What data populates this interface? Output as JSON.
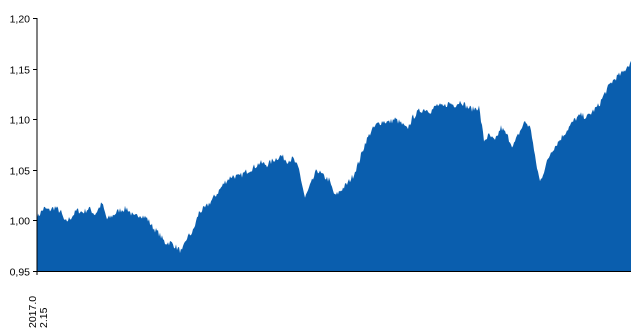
{
  "chart_data": {
    "type": "area",
    "title": "",
    "xlabel": "",
    "ylabel": "",
    "ylim": [
      0.95,
      1.2
    ],
    "yticks": [
      0.95,
      1.0,
      1.05,
      1.1,
      1.15,
      1.2
    ],
    "ytick_labels": [
      "0,95",
      "1,00",
      "1,05",
      "1,10",
      "1,15",
      "1,20"
    ],
    "xtick_labels": [
      "2017.02.15"
    ],
    "xtick_label_lines": [
      "2017.0",
      "2.15"
    ],
    "grid": false,
    "legend": "none",
    "fill_color": "#0a5eae",
    "x_first_label": "2017.02.15",
    "x_count": 595,
    "anchors": [
      {
        "x": 0,
        "y": 1.003
      },
      {
        "x": 7,
        "y": 1.012
      },
      {
        "x": 12,
        "y": 1.01
      },
      {
        "x": 18,
        "y": 1.013
      },
      {
        "x": 24,
        "y": 1.008
      },
      {
        "x": 28,
        "y": 0.998
      },
      {
        "x": 34,
        "y": 1.003
      },
      {
        "x": 40,
        "y": 1.01
      },
      {
        "x": 46,
        "y": 1.008
      },
      {
        "x": 52,
        "y": 1.012
      },
      {
        "x": 58,
        "y": 1.006
      },
      {
        "x": 65,
        "y": 1.017
      },
      {
        "x": 70,
        "y": 1.001
      },
      {
        "x": 76,
        "y": 1.005
      },
      {
        "x": 82,
        "y": 1.01
      },
      {
        "x": 90,
        "y": 1.012
      },
      {
        "x": 97,
        "y": 1.003
      },
      {
        "x": 103,
        "y": 1.006
      },
      {
        "x": 110,
        "y": 1.002
      },
      {
        "x": 116,
        "y": 0.993
      },
      {
        "x": 122,
        "y": 0.987
      },
      {
        "x": 128,
        "y": 0.978
      },
      {
        "x": 134,
        "y": 0.978
      },
      {
        "x": 140,
        "y": 0.973
      },
      {
        "x": 145,
        "y": 0.969
      },
      {
        "x": 150,
        "y": 0.983
      },
      {
        "x": 156,
        "y": 0.989
      },
      {
        "x": 162,
        "y": 1.008
      },
      {
        "x": 168,
        "y": 1.012
      },
      {
        "x": 174,
        "y": 1.019
      },
      {
        "x": 181,
        "y": 1.028
      },
      {
        "x": 188,
        "y": 1.038
      },
      {
        "x": 195,
        "y": 1.044
      },
      {
        "x": 202,
        "y": 1.043
      },
      {
        "x": 209,
        "y": 1.048
      },
      {
        "x": 216,
        "y": 1.052
      },
      {
        "x": 223,
        "y": 1.057
      },
      {
        "x": 230,
        "y": 1.055
      },
      {
        "x": 237,
        "y": 1.06
      },
      {
        "x": 244,
        "y": 1.064
      },
      {
        "x": 250,
        "y": 1.059
      },
      {
        "x": 256,
        "y": 1.061
      },
      {
        "x": 262,
        "y": 1.05
      },
      {
        "x": 268,
        "y": 1.022
      },
      {
        "x": 274,
        "y": 1.036
      },
      {
        "x": 280,
        "y": 1.05
      },
      {
        "x": 286,
        "y": 1.044
      },
      {
        "x": 292,
        "y": 1.04
      },
      {
        "x": 298,
        "y": 1.024
      },
      {
        "x": 304,
        "y": 1.03
      },
      {
        "x": 310,
        "y": 1.036
      },
      {
        "x": 316,
        "y": 1.044
      },
      {
        "x": 322,
        "y": 1.058
      },
      {
        "x": 328,
        "y": 1.076
      },
      {
        "x": 334,
        "y": 1.088
      },
      {
        "x": 340,
        "y": 1.095
      },
      {
        "x": 346,
        "y": 1.098
      },
      {
        "x": 352,
        "y": 1.097
      },
      {
        "x": 358,
        "y": 1.1
      },
      {
        "x": 364,
        "y": 1.096
      },
      {
        "x": 370,
        "y": 1.09
      },
      {
        "x": 376,
        "y": 1.102
      },
      {
        "x": 382,
        "y": 1.108
      },
      {
        "x": 388,
        "y": 1.11
      },
      {
        "x": 394,
        "y": 1.108
      },
      {
        "x": 400,
        "y": 1.114
      },
      {
        "x": 406,
        "y": 1.112
      },
      {
        "x": 412,
        "y": 1.116
      },
      {
        "x": 418,
        "y": 1.114
      },
      {
        "x": 424,
        "y": 1.118
      },
      {
        "x": 430,
        "y": 1.112
      },
      {
        "x": 436,
        "y": 1.11
      },
      {
        "x": 442,
        "y": 1.112
      },
      {
        "x": 447,
        "y": 1.079
      },
      {
        "x": 452,
        "y": 1.084
      },
      {
        "x": 458,
        "y": 1.078
      },
      {
        "x": 464,
        "y": 1.092
      },
      {
        "x": 470,
        "y": 1.084
      },
      {
        "x": 476,
        "y": 1.073
      },
      {
        "x": 482,
        "y": 1.086
      },
      {
        "x": 488,
        "y": 1.098
      },
      {
        "x": 494,
        "y": 1.09
      },
      {
        "x": 498,
        "y": 1.062
      },
      {
        "x": 503,
        "y": 1.038
      },
      {
        "x": 508,
        "y": 1.052
      },
      {
        "x": 514,
        "y": 1.068
      },
      {
        "x": 520,
        "y": 1.076
      },
      {
        "x": 526,
        "y": 1.084
      },
      {
        "x": 532,
        "y": 1.092
      },
      {
        "x": 538,
        "y": 1.1
      },
      {
        "x": 544,
        "y": 1.104
      },
      {
        "x": 550,
        "y": 1.102
      },
      {
        "x": 556,
        "y": 1.108
      },
      {
        "x": 562,
        "y": 1.114
      },
      {
        "x": 568,
        "y": 1.126
      },
      {
        "x": 574,
        "y": 1.136
      },
      {
        "x": 580,
        "y": 1.142
      },
      {
        "x": 586,
        "y": 1.146
      },
      {
        "x": 590,
        "y": 1.152
      },
      {
        "x": 594,
        "y": 1.156
      }
    ]
  }
}
